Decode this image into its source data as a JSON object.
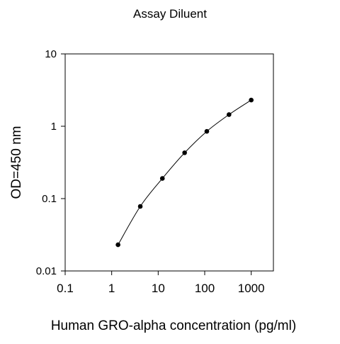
{
  "chart_data": {
    "type": "line",
    "title": "Assay Diluent",
    "xlabel": "Human GRO-alpha concentration (pg/ml)",
    "ylabel": "OD=450 nm",
    "x_scale": "log",
    "y_scale": "log",
    "xlim": [
      0.1,
      3000
    ],
    "ylim": [
      0.01,
      10
    ],
    "x_ticks": [
      0.1,
      1,
      10,
      100,
      1000
    ],
    "x_tick_labels": [
      "0.1",
      "1",
      "10",
      "100",
      "1000"
    ],
    "y_ticks": [
      0.01,
      0.1,
      1,
      10
    ],
    "y_tick_labels": [
      "0.01",
      "0.1",
      "1",
      "10"
    ],
    "grid": false,
    "series": [
      {
        "x": [
          1.37,
          4.12,
          12.3,
          37,
          111,
          333,
          1000
        ],
        "y": [
          0.023,
          0.078,
          0.19,
          0.43,
          0.85,
          1.45,
          2.3
        ]
      }
    ],
    "colors": {
      "line": "#000000",
      "marker": "#000000",
      "axis": "#000000"
    }
  }
}
